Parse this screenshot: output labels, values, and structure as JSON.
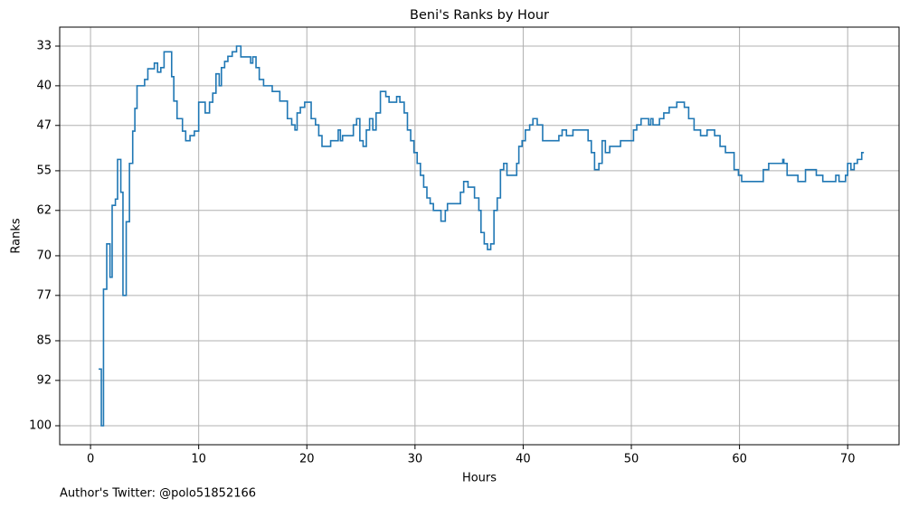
{
  "chart_data": {
    "type": "step",
    "title": "Beni's Ranks by Hour",
    "xlabel": "Hours",
    "ylabel": "Ranks",
    "footnote": "Author's Twitter: @polo51852166",
    "color": "#1f77b4",
    "grid": true,
    "xlim": [
      -2.85,
      74.75
    ],
    "xticks": [
      0,
      10,
      20,
      30,
      40,
      50,
      60,
      70
    ],
    "ylim": [
      103.35,
      29.65
    ],
    "yticks": [
      33,
      40,
      47,
      55,
      62,
      70,
      77,
      85,
      92,
      100
    ],
    "x": [
      0.75,
      1.0,
      1.2,
      1.5,
      1.8,
      2.0,
      2.3,
      2.5,
      2.8,
      3.0,
      3.3,
      3.6,
      3.9,
      4.1,
      4.3,
      5.0,
      5.3,
      5.9,
      6.2,
      6.5,
      6.8,
      7.5,
      7.7,
      8.0,
      8.5,
      8.8,
      9.2,
      9.6,
      10.0,
      10.6,
      11.0,
      11.3,
      11.6,
      11.9,
      12.1,
      12.4,
      12.7,
      13.1,
      13.5,
      13.9,
      14.8,
      15.0,
      15.3,
      15.6,
      16.0,
      16.8,
      17.5,
      18.2,
      18.6,
      18.9,
      19.1,
      19.4,
      19.8,
      20.4,
      20.8,
      21.1,
      21.4,
      22.2,
      22.9,
      23.1,
      23.3,
      24.3,
      24.6,
      24.9,
      25.2,
      25.5,
      25.8,
      26.1,
      26.4,
      26.8,
      27.3,
      27.6,
      28.3,
      28.6,
      29.0,
      29.3,
      29.6,
      29.9,
      30.2,
      30.5,
      30.8,
      31.1,
      31.4,
      31.7,
      32.4,
      32.8,
      33.0,
      34.2,
      34.5,
      34.9,
      35.5,
      35.9,
      36.1,
      36.4,
      36.7,
      37.0,
      37.3,
      37.6,
      37.9,
      38.2,
      38.5,
      39.4,
      39.6,
      39.9,
      40.2,
      40.6,
      40.9,
      41.3,
      41.8,
      43.3,
      43.6,
      44.0,
      44.6,
      46.0,
      46.3,
      46.6,
      47.0,
      47.3,
      47.6,
      48.0,
      49.0,
      50.2,
      50.5,
      50.9,
      51.6,
      51.8,
      52.0,
      52.6,
      53.0,
      53.5,
      54.2,
      54.9,
      55.3,
      55.8,
      56.4,
      57.0,
      57.7,
      58.2,
      58.7,
      59.5,
      59.9,
      60.2,
      62.2,
      62.7,
      64.0,
      64.1,
      64.4,
      65.4,
      66.1,
      67.1,
      67.7,
      68.9,
      69.2,
      69.8,
      70.0,
      70.3,
      70.6,
      70.9,
      71.3,
      71.5
    ],
    "values": [
      90,
      100,
      75.9,
      67.9,
      73.8,
      61.1,
      60,
      53,
      58.8,
      77,
      64,
      53.7,
      48,
      44,
      40,
      38.9,
      37,
      36,
      37.6,
      36.8,
      34,
      38.4,
      42.7,
      45.8,
      48,
      49.7,
      48.8,
      48,
      42.9,
      44.8,
      42.9,
      41.3,
      37.9,
      40,
      36.8,
      35.7,
      34.8,
      34,
      33,
      34.9,
      36,
      34.9,
      36.8,
      38.9,
      40,
      41,
      42.7,
      45.8,
      46.9,
      47.8,
      44.8,
      43.8,
      42.9,
      45.8,
      46.9,
      48.8,
      50.7,
      49.7,
      47.8,
      49.7,
      48.8,
      46.9,
      45.8,
      49.7,
      50.7,
      47.8,
      45.8,
      47.8,
      44.8,
      41,
      41.9,
      42.9,
      41.9,
      42.9,
      44.8,
      47.8,
      49.7,
      51.8,
      53.7,
      55.8,
      57.9,
      59.8,
      60.8,
      62,
      63.9,
      62,
      60.8,
      58.8,
      56.9,
      57.9,
      59.8,
      62,
      65.9,
      67.9,
      68.9,
      67.9,
      62,
      59.8,
      54.8,
      53.7,
      55.8,
      53.7,
      50.7,
      49.7,
      47.8,
      46.9,
      45.8,
      46.9,
      49.7,
      48.8,
      47.8,
      48.8,
      47.8,
      49.7,
      51.8,
      54.8,
      53.7,
      49.7,
      51.8,
      50.7,
      49.7,
      47.8,
      46.9,
      45.8,
      46.9,
      45.8,
      46.9,
      45.8,
      44.8,
      43.8,
      42.9,
      43.8,
      45.8,
      47.8,
      48.8,
      47.8,
      48.8,
      50.7,
      51.8,
      54.8,
      55.8,
      56.9,
      54.8,
      53.7,
      53,
      53.7,
      55.8,
      56.9,
      54.8,
      55.8,
      56.9,
      55.8,
      56.9,
      55.8,
      53.7,
      54.8,
      53.7,
      53,
      51.8,
      51.8
    ]
  }
}
